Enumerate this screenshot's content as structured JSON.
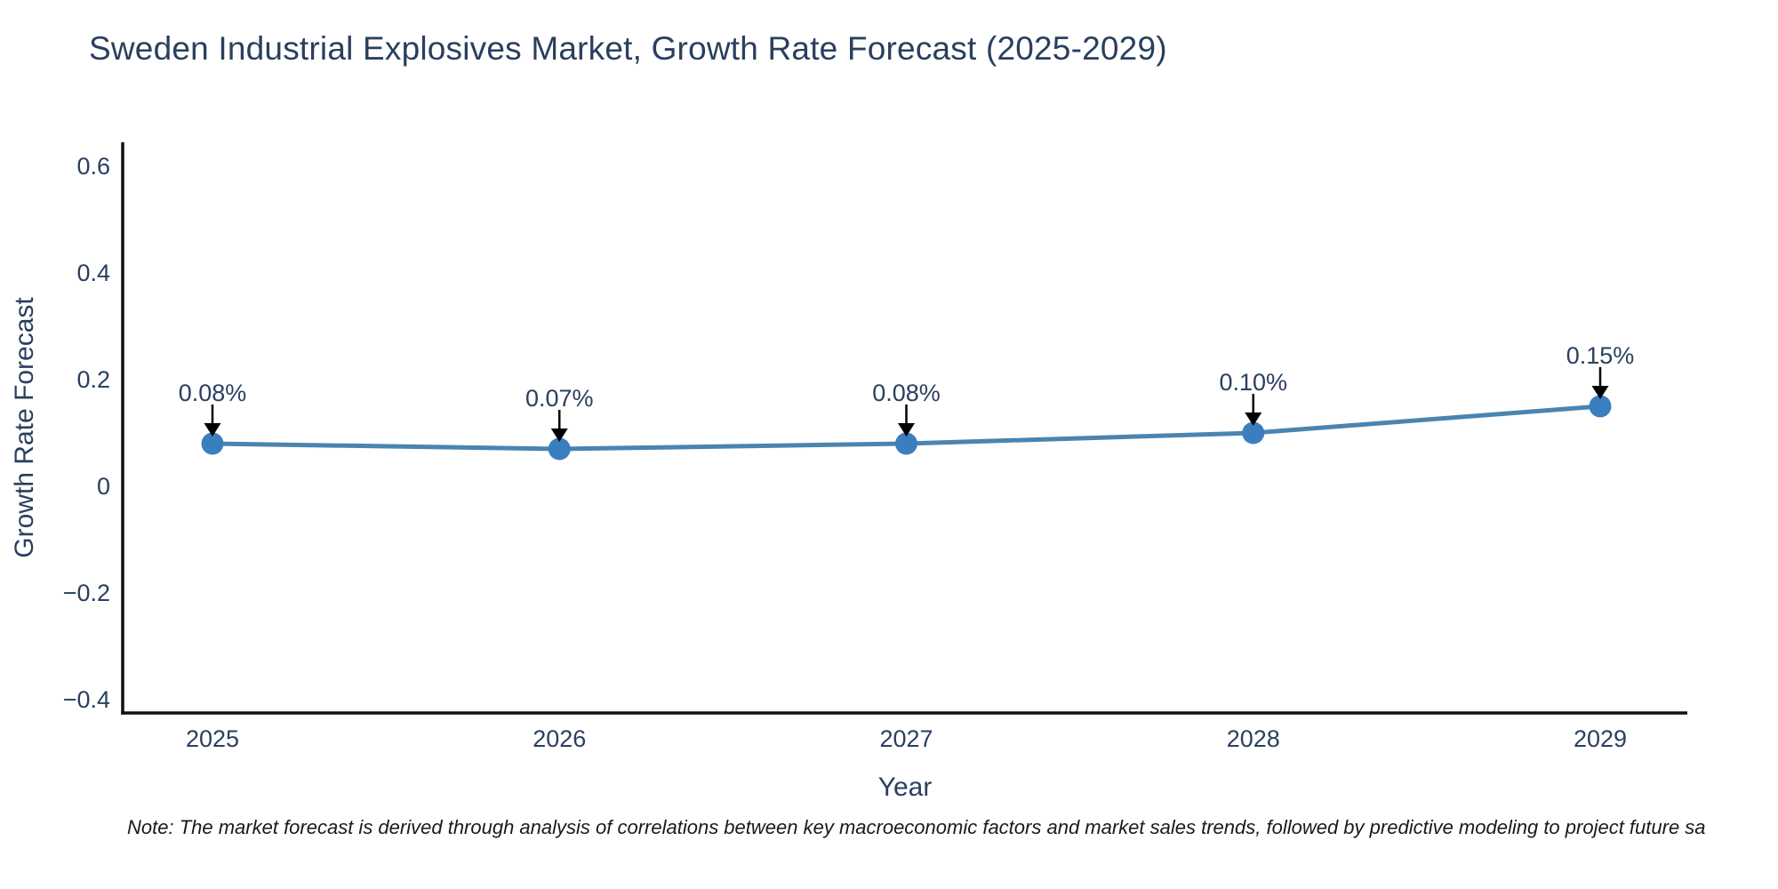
{
  "title": "Sweden Industrial Explosives Market, Growth Rate Forecast (2025-2029)",
  "note": "Note: The market forecast is derived through analysis of correlations between key macroeconomic factors and market sales trends, followed by predictive modeling to project future sa",
  "colors": {
    "text": "#2a3f5f",
    "line": "#4a84b0",
    "marker": "#3a7ebf",
    "axis": "#101010",
    "arrow": "#000000",
    "background": "#ffffff"
  },
  "chart_data": {
    "type": "line",
    "title": "Sweden Industrial Explosives Market, Growth Rate Forecast (2025-2029)",
    "xlabel": "Year",
    "ylabel": "Growth Rate Forecast",
    "x": [
      "2025",
      "2026",
      "2027",
      "2028",
      "2029"
    ],
    "series": [
      {
        "name": "Growth Rate Forecast",
        "values": [
          0.08,
          0.07,
          0.08,
          0.1,
          0.15
        ],
        "point_labels": [
          "0.08%",
          "0.07%",
          "0.08%",
          "0.10%",
          "0.15%"
        ]
      }
    ],
    "ytick_values": [
      0.6,
      0.4,
      0.2,
      0,
      -0.2,
      -0.4
    ],
    "ytick_labels": [
      "0.6",
      "0.4",
      "0.2",
      "0",
      "−0.2",
      "−0.4"
    ],
    "ylim": [
      -0.425,
      0.645
    ],
    "grid": false,
    "legend": "none",
    "annotations": "arrows-down-to-points"
  }
}
